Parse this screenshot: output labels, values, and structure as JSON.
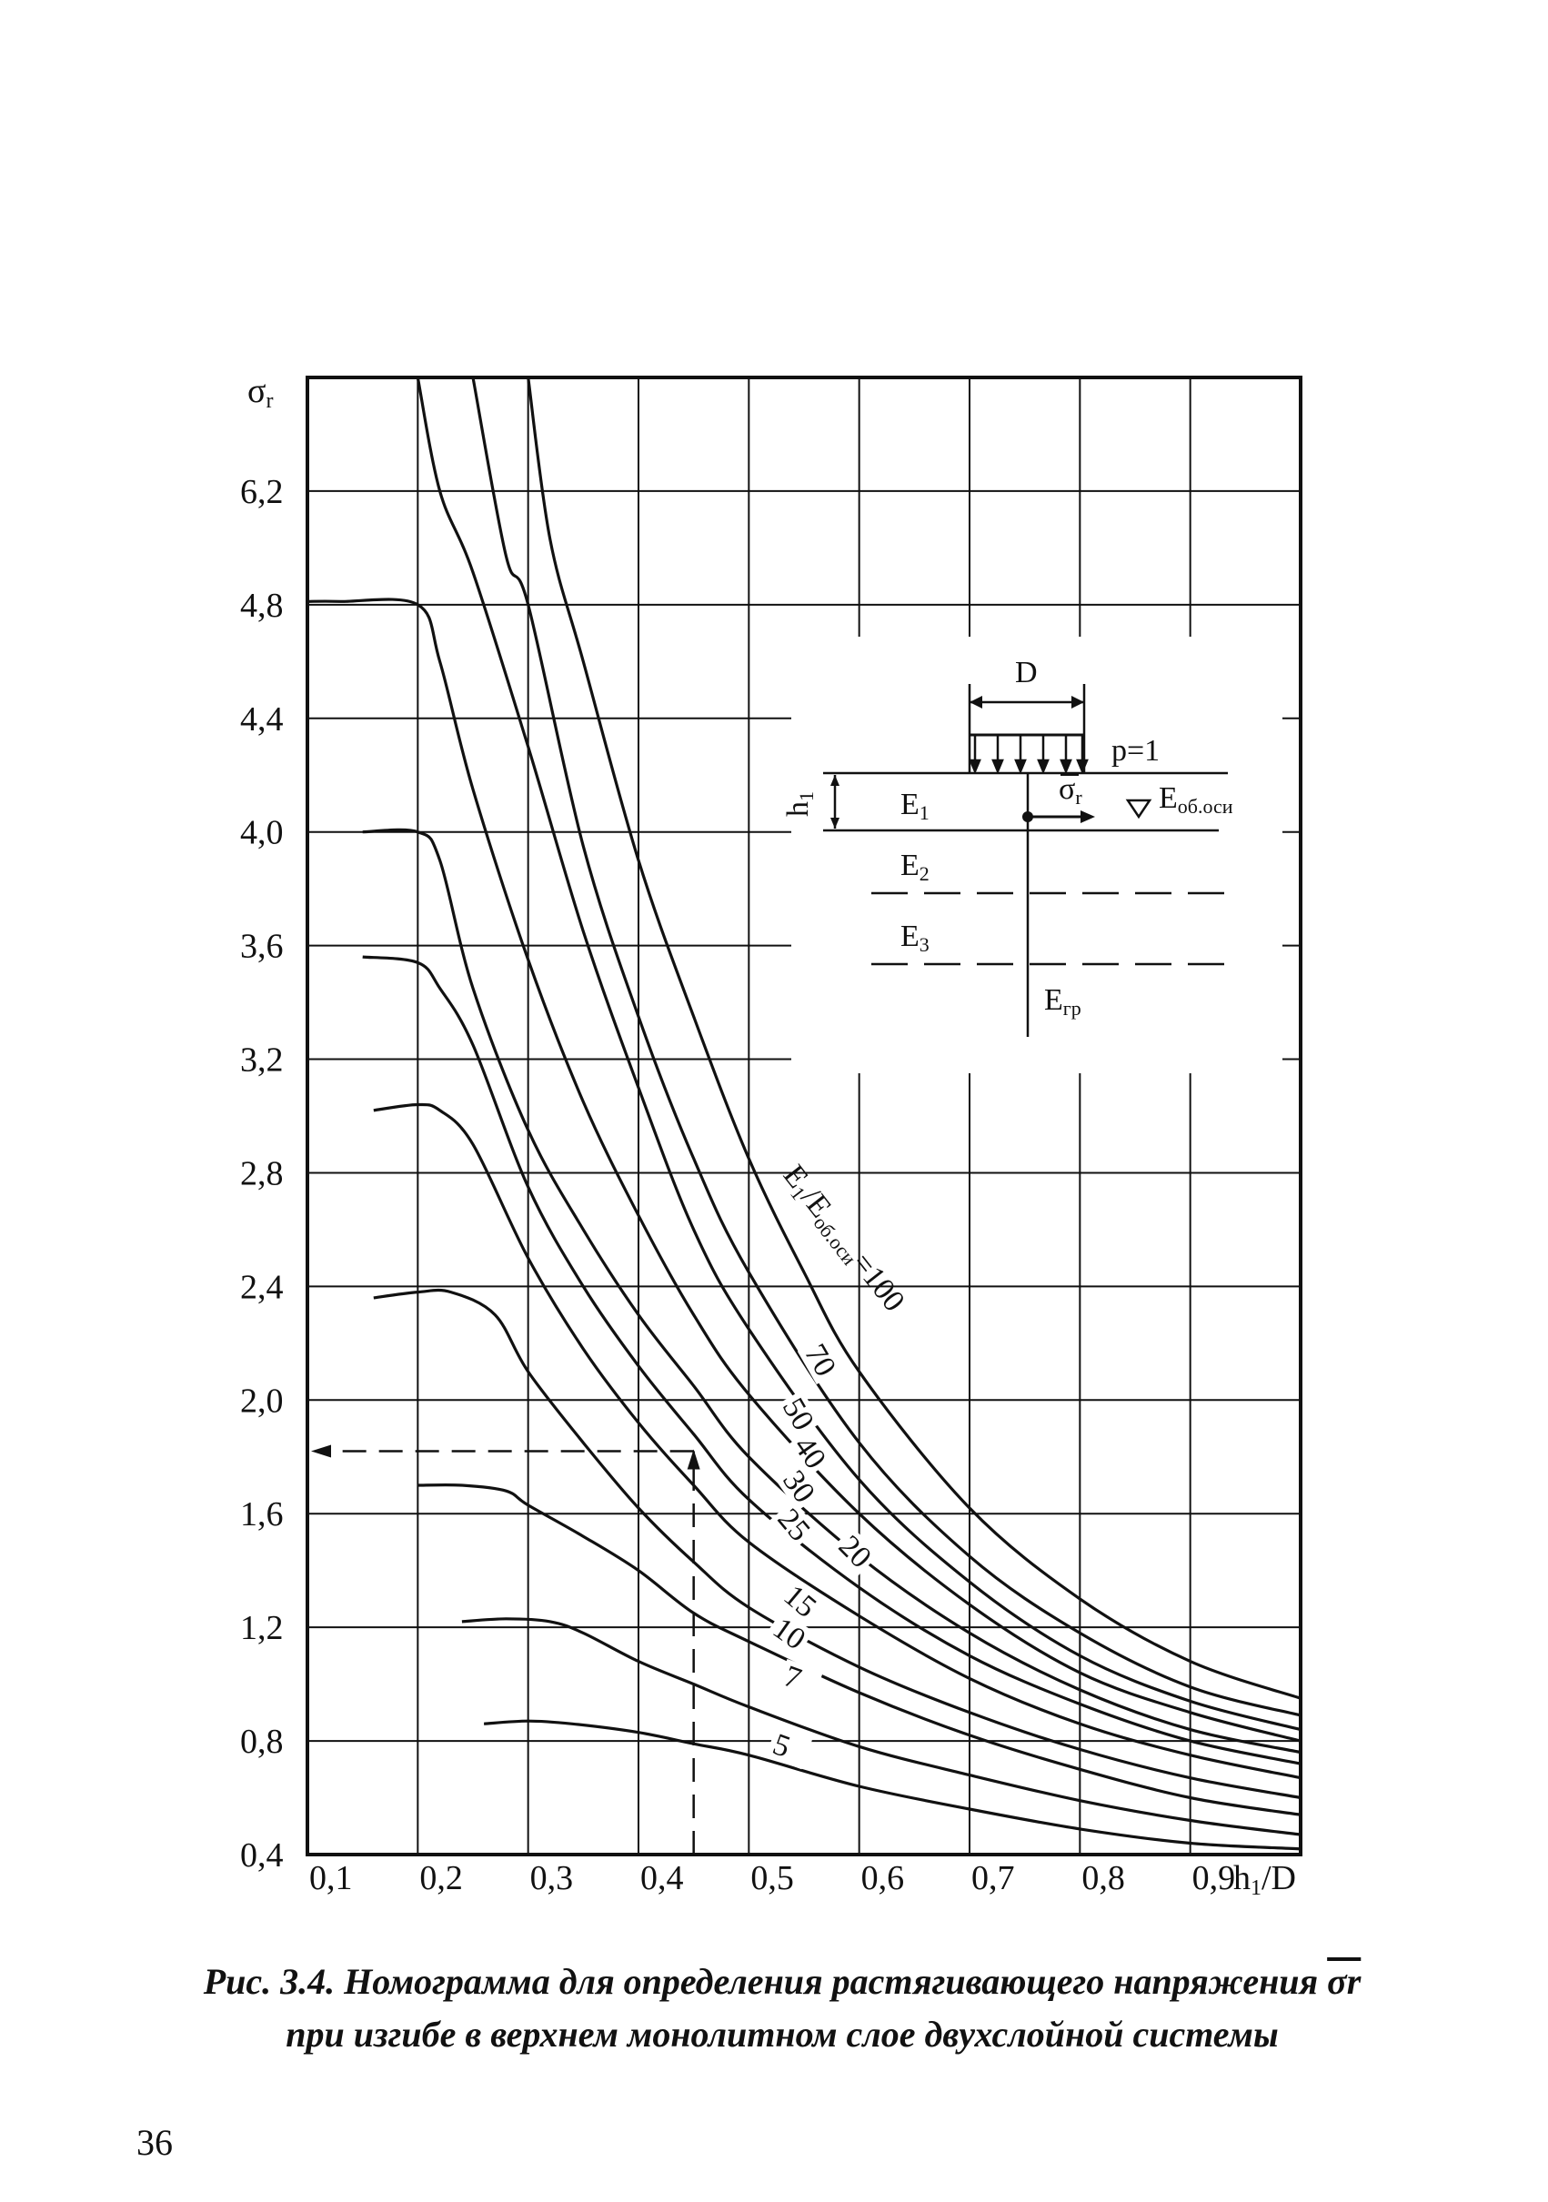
{
  "chart_data": {
    "type": "line",
    "ylabel": "σr",
    "xlabel": "h1/D",
    "y_axis_label_main": "σ",
    "y_axis_label_sub": "r",
    "x_axis_label_main": "h",
    "x_axis_label_sub": "1",
    "x_axis_label_tail": "/D",
    "xlim": [
      0.1,
      1.0
    ],
    "ylim": [
      0.4,
      6.6
    ],
    "x_ticks": [
      "0,1",
      "0,2",
      "0,3",
      "0,4",
      "0,5",
      "0,6",
      "0,7",
      "0,8",
      "0,9"
    ],
    "y_ticks": [
      "0,4",
      "0,8",
      "1,2",
      "1,6",
      "2,0",
      "2,4",
      "2,8",
      "3,2",
      "3,6",
      "4,0",
      "4,4",
      "4,8",
      "6,2"
    ],
    "parameter_label_main": "E",
    "parameter_label_sub1": "1",
    "parameter_label_mid": "/E",
    "parameter_label_sub2": "об.оси",
    "parameter_label_tail": "=100",
    "grid": true,
    "series": [
      {
        "name": "100",
        "x": [
          0.3,
          0.32,
          0.35,
          0.4,
          0.45,
          0.5,
          0.55,
          0.6,
          0.7,
          0.8,
          0.9,
          1.0
        ],
        "y": [
          6.6,
          5.6,
          4.6,
          3.9,
          3.35,
          2.85,
          2.45,
          2.1,
          1.62,
          1.3,
          1.08,
          0.95
        ]
      },
      {
        "name": "70",
        "x": [
          0.25,
          0.28,
          0.3,
          0.35,
          0.4,
          0.45,
          0.5,
          0.6,
          0.7,
          0.8,
          0.9,
          1.0
        ],
        "y": [
          6.6,
          5.4,
          4.8,
          3.95,
          3.35,
          2.85,
          2.45,
          1.85,
          1.45,
          1.18,
          0.99,
          0.89
        ]
      },
      {
        "name": "50",
        "x": [
          0.2,
          0.22,
          0.25,
          0.3,
          0.35,
          0.4,
          0.45,
          0.5,
          0.6,
          0.7,
          0.8,
          0.9,
          1.0
        ],
        "y": [
          6.6,
          6.2,
          5.2,
          4.3,
          3.65,
          3.1,
          2.6,
          2.25,
          1.72,
          1.36,
          1.1,
          0.94,
          0.84
        ]
      },
      {
        "name": "40",
        "x": [
          0.1,
          0.13,
          0.2,
          0.22,
          0.25,
          0.3,
          0.35,
          0.4,
          0.45,
          0.5,
          0.6,
          0.7,
          0.8,
          0.9,
          1.0
        ],
        "y": [
          4.84,
          4.84,
          4.8,
          4.6,
          4.15,
          3.55,
          3.05,
          2.65,
          2.3,
          2.02,
          1.6,
          1.28,
          1.04,
          0.9,
          0.8
        ]
      },
      {
        "name": "30",
        "x": [
          0.15,
          0.2,
          0.22,
          0.25,
          0.3,
          0.35,
          0.4,
          0.45,
          0.5,
          0.6,
          0.7,
          0.8,
          0.9,
          1.0
        ],
        "y": [
          4.0,
          4.0,
          3.9,
          3.45,
          2.95,
          2.6,
          2.3,
          2.05,
          1.8,
          1.45,
          1.18,
          0.98,
          0.84,
          0.76
        ]
      },
      {
        "name": "25",
        "x": [
          0.15,
          0.2,
          0.22,
          0.25,
          0.3,
          0.35,
          0.4,
          0.45,
          0.5,
          0.6,
          0.7,
          0.8,
          0.9,
          1.0
        ],
        "y": [
          3.56,
          3.54,
          3.45,
          3.25,
          2.75,
          2.4,
          2.12,
          1.88,
          1.65,
          1.34,
          1.1,
          0.93,
          0.8,
          0.72
        ]
      },
      {
        "name": "20",
        "x": [
          0.16,
          0.2,
          0.22,
          0.25,
          0.3,
          0.35,
          0.4,
          0.45,
          0.5,
          0.6,
          0.7,
          0.8,
          0.9,
          1.0
        ],
        "y": [
          3.02,
          3.04,
          3.02,
          2.9,
          2.5,
          2.18,
          1.92,
          1.7,
          1.5,
          1.24,
          1.02,
          0.86,
          0.75,
          0.67
        ]
      },
      {
        "name": "15",
        "x": [
          0.16,
          0.2,
          0.23,
          0.27,
          0.3,
          0.35,
          0.4,
          0.45,
          0.5,
          0.6,
          0.7,
          0.8,
          0.9,
          1.0
        ],
        "y": [
          2.36,
          2.38,
          2.38,
          2.3,
          2.1,
          1.85,
          1.62,
          1.43,
          1.27,
          1.06,
          0.9,
          0.77,
          0.67,
          0.6
        ]
      },
      {
        "name": "10",
        "x": [
          0.2,
          0.24,
          0.28,
          0.3,
          0.35,
          0.4,
          0.45,
          0.5,
          0.6,
          0.7,
          0.8,
          0.9,
          1.0
        ],
        "y": [
          1.7,
          1.7,
          1.68,
          1.63,
          1.52,
          1.4,
          1.25,
          1.15,
          0.97,
          0.82,
          0.7,
          0.6,
          0.54
        ]
      },
      {
        "name": "7",
        "x": [
          0.24,
          0.28,
          0.32,
          0.35,
          0.4,
          0.45,
          0.5,
          0.6,
          0.7,
          0.8,
          0.9,
          1.0
        ],
        "y": [
          1.22,
          1.23,
          1.22,
          1.18,
          1.08,
          1.0,
          0.92,
          0.78,
          0.68,
          0.59,
          0.52,
          0.47
        ]
      },
      {
        "name": "5",
        "x": [
          0.26,
          0.3,
          0.34,
          0.4,
          0.45,
          0.5,
          0.6,
          0.7,
          0.8,
          0.9,
          1.0
        ],
        "y": [
          0.86,
          0.87,
          0.86,
          0.83,
          0.79,
          0.75,
          0.64,
          0.56,
          0.49,
          0.44,
          0.42
        ]
      }
    ],
    "curve_labels": [
      "100",
      "70",
      "50",
      "40",
      "30",
      "25",
      "20",
      "15",
      "10",
      "7",
      "5"
    ],
    "example_path": {
      "x": 0.45,
      "y_at_start": 0.4,
      "y_at_curve": 1.82,
      "y_end_x": 0.1
    }
  },
  "inset": {
    "load_width_label": "D",
    "load_label": "p=1",
    "thickness_label": "h1",
    "thickness_main": "h",
    "thickness_sub": "1",
    "layers": [
      {
        "main": "E",
        "sub": "1"
      },
      {
        "main": "E",
        "sub": "2"
      },
      {
        "main": "E",
        "sub": "3"
      },
      {
        "main": "E",
        "sub": "гр"
      }
    ],
    "stress_main": "σ",
    "stress_sub": "r",
    "axis_marker_main": "E",
    "axis_marker_sub": "об.оси"
  },
  "caption": {
    "line1_prefix": "Рис. 3.4. Номограмма для определения растягивающего напряжения ",
    "line1_symbol": "σr",
    "line2": "при изгибе в верхнем монолитном слое двухслойной системы"
  },
  "page_number": "36"
}
